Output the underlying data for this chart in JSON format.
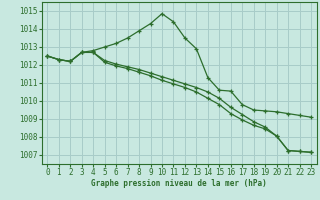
{
  "bg_color": "#c8e8e0",
  "grid_color": "#a8ccc8",
  "line_color": "#2d6e2d",
  "marker": "+",
  "xlabel": "Graphe pression niveau de la mer (hPa)",
  "ylim": [
    1006.5,
    1015.5
  ],
  "yticks": [
    1007,
    1008,
    1009,
    1010,
    1011,
    1012,
    1013,
    1014,
    1015
  ],
  "xlim": [
    -0.5,
    23.5
  ],
  "xticks": [
    0,
    1,
    2,
    3,
    4,
    5,
    6,
    7,
    8,
    9,
    10,
    11,
    12,
    13,
    14,
    15,
    16,
    17,
    18,
    19,
    20,
    21,
    22,
    23
  ],
  "series": [
    [
      1012.5,
      1012.3,
      1012.2,
      1012.7,
      1012.8,
      1013.0,
      1013.2,
      1013.5,
      1013.9,
      1014.3,
      1014.85,
      1014.4,
      1013.5,
      1012.9,
      1011.3,
      1010.6,
      1010.55,
      1009.8,
      1009.5,
      1009.45,
      1009.4,
      1009.3,
      1009.2,
      1009.1
    ],
    [
      1012.5,
      1012.3,
      1012.2,
      1012.7,
      1012.7,
      1012.25,
      1012.05,
      1011.9,
      1011.75,
      1011.55,
      1011.35,
      1011.15,
      1010.95,
      1010.75,
      1010.5,
      1010.15,
      1009.65,
      1009.25,
      1008.85,
      1008.55,
      1008.05,
      1007.25,
      1007.2,
      1007.15
    ],
    [
      1012.5,
      1012.3,
      1012.2,
      1012.7,
      1012.7,
      1012.15,
      1011.95,
      1011.8,
      1011.6,
      1011.4,
      1011.15,
      1010.95,
      1010.75,
      1010.5,
      1010.15,
      1009.8,
      1009.3,
      1008.95,
      1008.65,
      1008.45,
      1008.05,
      1007.25,
      1007.2,
      1007.15
    ]
  ]
}
